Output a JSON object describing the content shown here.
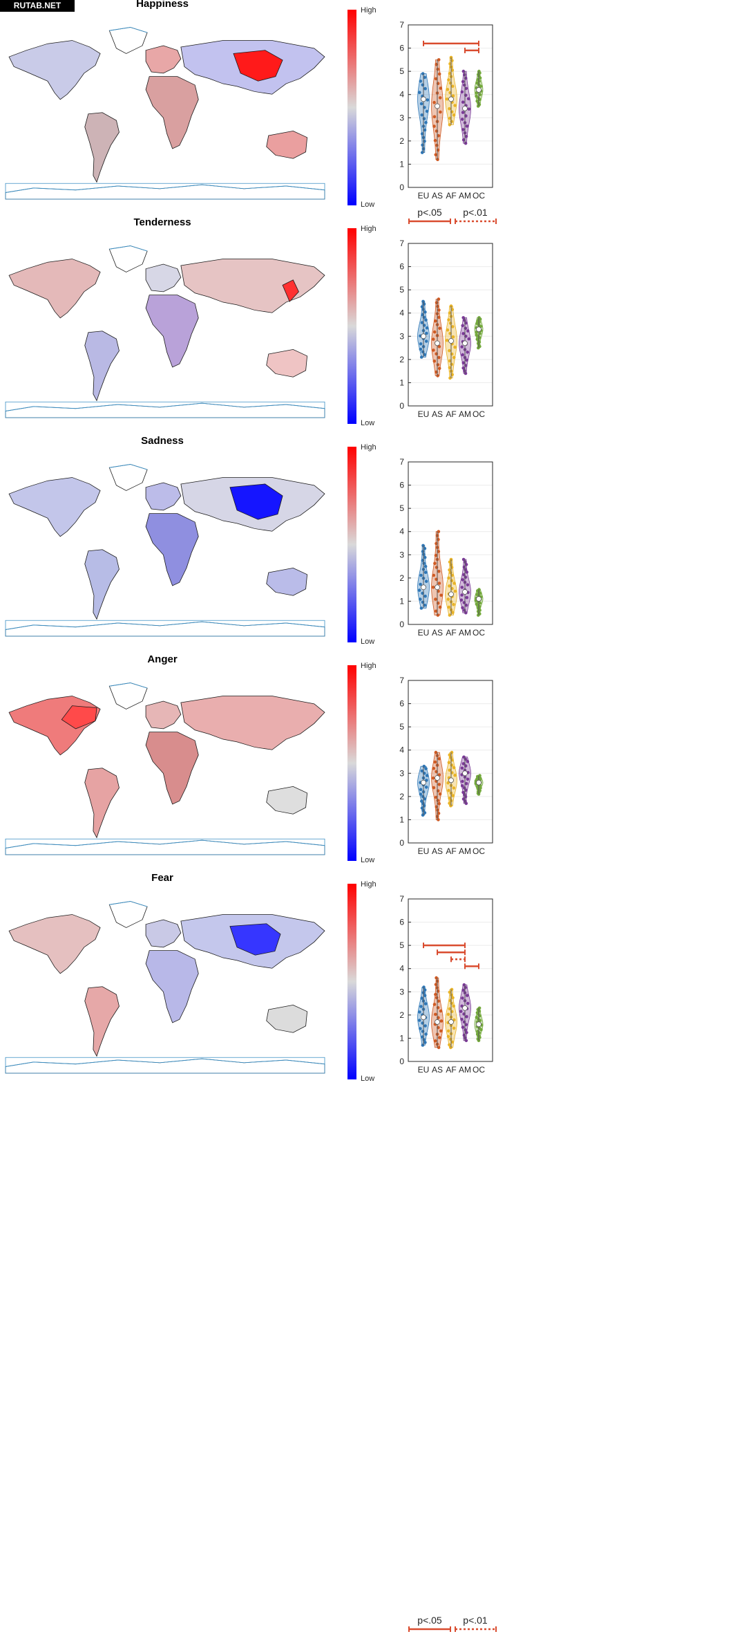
{
  "watermark": "RUTAB.NET",
  "colorbar": {
    "high_label": "High",
    "low_label": "Low",
    "colors": [
      "#0000ff",
      "#d9d9d9",
      "#ff0000"
    ]
  },
  "region_colors": {
    "EU": "#2f77b6",
    "AS": "#cf5a23",
    "AF": "#e8b328",
    "AM": "#7a3a96",
    "OC": "#73a83c"
  },
  "significance_color": "#d94b2e",
  "legend": {
    "p05": "p<.05",
    "p01": "p<.01"
  },
  "chart_data": [
    {
      "type": "violin",
      "title": "Happiness",
      "categories": [
        "EU",
        "AS",
        "AF",
        "AM",
        "OC"
      ],
      "ylim": [
        0,
        7
      ],
      "yticks": [
        0,
        1,
        2,
        3,
        4,
        5,
        6,
        7
      ],
      "grid": true,
      "median": [
        3.8,
        3.5,
        3.8,
        3.4,
        4.2
      ],
      "range": [
        [
          1.5,
          4.9
        ],
        [
          1.2,
          5.5
        ],
        [
          2.7,
          5.6
        ],
        [
          1.9,
          5.0
        ],
        [
          3.5,
          5.0
        ]
      ],
      "significance": [
        {
          "from": "EU",
          "to": "OC",
          "level": "p<.05",
          "y": 6.2
        },
        {
          "from": "AM",
          "to": "OC",
          "level": "p<.05",
          "y": 5.9
        }
      ]
    },
    {
      "type": "violin",
      "title": "Tenderness",
      "categories": [
        "EU",
        "AS",
        "AF",
        "AM",
        "OC"
      ],
      "ylim": [
        0,
        7
      ],
      "yticks": [
        0,
        1,
        2,
        3,
        4,
        5,
        6,
        7
      ],
      "grid": true,
      "median": [
        3.0,
        2.7,
        2.8,
        2.7,
        3.3
      ],
      "range": [
        [
          2.1,
          4.5
        ],
        [
          1.3,
          4.6
        ],
        [
          1.2,
          4.3
        ],
        [
          1.4,
          3.8
        ],
        [
          2.5,
          3.8
        ]
      ],
      "significance": []
    },
    {
      "type": "violin",
      "title": "Sadness",
      "categories": [
        "EU",
        "AS",
        "AF",
        "AM",
        "OC"
      ],
      "ylim": [
        0,
        7
      ],
      "yticks": [
        0,
        1,
        2,
        3,
        4,
        5,
        6,
        7
      ],
      "grid": true,
      "median": [
        1.6,
        1.6,
        1.3,
        1.4,
        1.1
      ],
      "range": [
        [
          0.7,
          3.4
        ],
        [
          0.4,
          4.0
        ],
        [
          0.4,
          2.8
        ],
        [
          0.5,
          2.8
        ],
        [
          0.4,
          1.5
        ]
      ],
      "significance": []
    },
    {
      "type": "violin",
      "title": "Anger",
      "categories": [
        "EU",
        "AS",
        "AF",
        "AM",
        "OC"
      ],
      "ylim": [
        0,
        7
      ],
      "yticks": [
        0,
        1,
        2,
        3,
        4,
        5,
        6,
        7
      ],
      "grid": true,
      "median": [
        2.6,
        2.8,
        2.7,
        3.0,
        2.6
      ],
      "range": [
        [
          1.2,
          3.3
        ],
        [
          1.0,
          3.9
        ],
        [
          1.6,
          3.9
        ],
        [
          1.7,
          3.7
        ],
        [
          2.1,
          2.9
        ]
      ],
      "significance": []
    },
    {
      "type": "violin",
      "title": "Fear",
      "categories": [
        "EU",
        "AS",
        "AF",
        "AM",
        "OC"
      ],
      "ylim": [
        0,
        7
      ],
      "yticks": [
        0,
        1,
        2,
        3,
        4,
        5,
        6,
        7
      ],
      "grid": true,
      "median": [
        1.9,
        1.7,
        1.7,
        2.3,
        1.6
      ],
      "range": [
        [
          0.7,
          3.2
        ],
        [
          0.6,
          3.6
        ],
        [
          0.6,
          3.1
        ],
        [
          0.9,
          3.3
        ],
        [
          0.9,
          2.3
        ]
      ],
      "significance": [
        {
          "from": "EU",
          "to": "AM",
          "level": "p<.05",
          "y": 5.0
        },
        {
          "from": "AS",
          "to": "AM",
          "level": "p<.05",
          "y": 4.7
        },
        {
          "from": "AF",
          "to": "AM",
          "level": "p<.01",
          "y": 4.4
        },
        {
          "from": "AM",
          "to": "OC",
          "level": "p<.05",
          "y": 4.1
        }
      ]
    }
  ]
}
